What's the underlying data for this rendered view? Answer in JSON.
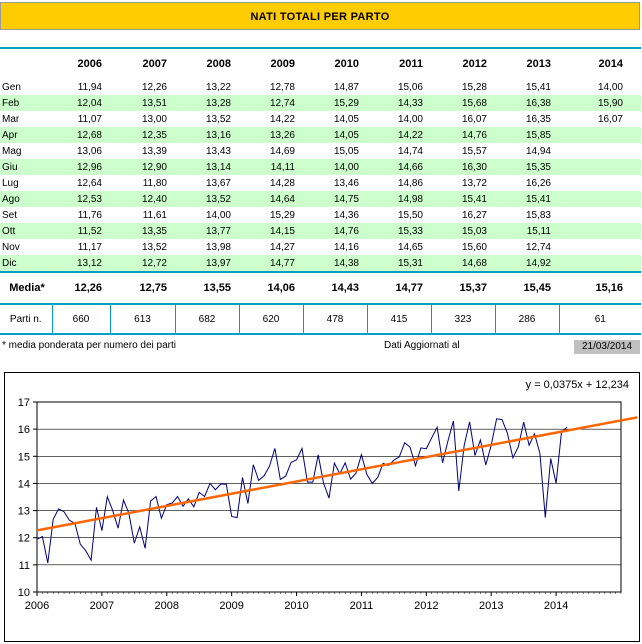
{
  "title": "NATI TOTALI PER PARTO",
  "table": {
    "years": [
      "2006",
      "2007",
      "2008",
      "2009",
      "2010",
      "2011",
      "2012",
      "2013",
      "2014"
    ],
    "rows": [
      {
        "label": "Gen",
        "values": [
          "11,94",
          "12,26",
          "13,22",
          "12,78",
          "14,87",
          "15,06",
          "15,28",
          "15,41",
          "14,00"
        ]
      },
      {
        "label": "Feb",
        "values": [
          "12,04",
          "13,51",
          "13,28",
          "12,74",
          "15,29",
          "14,33",
          "15,68",
          "16,38",
          "15,90"
        ]
      },
      {
        "label": "Mar",
        "values": [
          "11,07",
          "13,00",
          "13,52",
          "14,22",
          "14,05",
          "14,00",
          "16,07",
          "16,35",
          "16,07"
        ]
      },
      {
        "label": "Apr",
        "values": [
          "12,68",
          "12,35",
          "13,16",
          "13,26",
          "14,05",
          "14,22",
          "14,76",
          "15,85",
          ""
        ]
      },
      {
        "label": "Mag",
        "values": [
          "13,06",
          "13,39",
          "13,43",
          "14,69",
          "15,05",
          "14,74",
          "15,57",
          "14,94",
          ""
        ]
      },
      {
        "label": "Giu",
        "values": [
          "12,96",
          "12,90",
          "13,14",
          "14,11",
          "14,00",
          "14,66",
          "16,30",
          "15,35",
          ""
        ]
      },
      {
        "label": "Lug",
        "values": [
          "12,64",
          "11,80",
          "13,67",
          "14,28",
          "13,46",
          "14,86",
          "13,72",
          "16,26",
          ""
        ]
      },
      {
        "label": "Ago",
        "values": [
          "12,53",
          "12,40",
          "13,52",
          "14,64",
          "14,75",
          "14,98",
          "15,41",
          "15,41",
          ""
        ]
      },
      {
        "label": "Set",
        "values": [
          "11,76",
          "11,61",
          "14,00",
          "15,29",
          "14,36",
          "15,50",
          "16,27",
          "15,83",
          ""
        ]
      },
      {
        "label": "Ott",
        "values": [
          "11,52",
          "13,35",
          "13,77",
          "14,15",
          "14,76",
          "15,33",
          "15,03",
          "15,11",
          ""
        ]
      },
      {
        "label": "Nov",
        "values": [
          "11,17",
          "13,52",
          "13,98",
          "14,27",
          "14,16",
          "14,65",
          "15,60",
          "12,74",
          ""
        ]
      },
      {
        "label": "Dic",
        "values": [
          "13,12",
          "12,72",
          "13,97",
          "14,77",
          "14,38",
          "15,31",
          "14,68",
          "14,92",
          ""
        ]
      }
    ],
    "media": {
      "label": "Media*",
      "values": [
        "12,26",
        "12,75",
        "13,55",
        "14,06",
        "14,43",
        "14,77",
        "15,37",
        "15,45",
        "15,16"
      ]
    },
    "parti": {
      "label": "Parti n.",
      "values": [
        "660",
        "613",
        "682",
        "620",
        "478",
        "415",
        "323",
        "286",
        "61"
      ]
    }
  },
  "footnote": "* media ponderata per numero dei parti",
  "updated_label": "Dati Aggiornati al",
  "updated_date": "21/03/2014",
  "chart_data": {
    "type": "line",
    "equation": "y = 0,0375x + 12,234",
    "x_ticks": [
      "2006",
      "2007",
      "2008",
      "2009",
      "2010",
      "2011",
      "2012",
      "2013",
      "2014"
    ],
    "y_ticks": [
      "10",
      "11",
      "12",
      "13",
      "14",
      "15",
      "16",
      "17"
    ],
    "ylim": [
      10,
      17
    ],
    "grid": true,
    "series": [
      {
        "color": "#000080",
        "values": [
          11.94,
          12.04,
          11.07,
          12.68,
          13.06,
          12.96,
          12.64,
          12.53,
          11.76,
          11.52,
          11.17,
          13.12,
          12.26,
          13.51,
          13.0,
          12.35,
          13.39,
          12.9,
          11.8,
          12.4,
          11.61,
          13.35,
          13.52,
          12.72,
          13.22,
          13.28,
          13.52,
          13.16,
          13.43,
          13.14,
          13.67,
          13.52,
          14.0,
          13.77,
          13.98,
          13.97,
          12.78,
          12.74,
          14.22,
          13.26,
          14.69,
          14.11,
          14.28,
          14.64,
          15.29,
          14.15,
          14.27,
          14.77,
          14.87,
          15.29,
          14.05,
          14.05,
          15.05,
          14.0,
          13.46,
          14.75,
          14.36,
          14.76,
          14.16,
          14.38,
          15.06,
          14.33,
          14.0,
          14.22,
          14.74,
          14.66,
          14.86,
          14.98,
          15.5,
          15.33,
          14.65,
          15.31,
          15.28,
          15.68,
          16.07,
          14.76,
          15.57,
          16.3,
          13.72,
          15.41,
          16.27,
          15.03,
          15.6,
          14.68,
          15.41,
          16.38,
          16.35,
          15.85,
          14.94,
          15.35,
          16.26,
          15.41,
          15.83,
          15.11,
          12.74,
          14.92,
          14.0,
          15.9,
          16.07
        ]
      },
      {
        "color": "#ff6600",
        "trend": {
          "slope": 0.0375,
          "intercept": 12.234,
          "x_end": 112
        }
      }
    ]
  }
}
